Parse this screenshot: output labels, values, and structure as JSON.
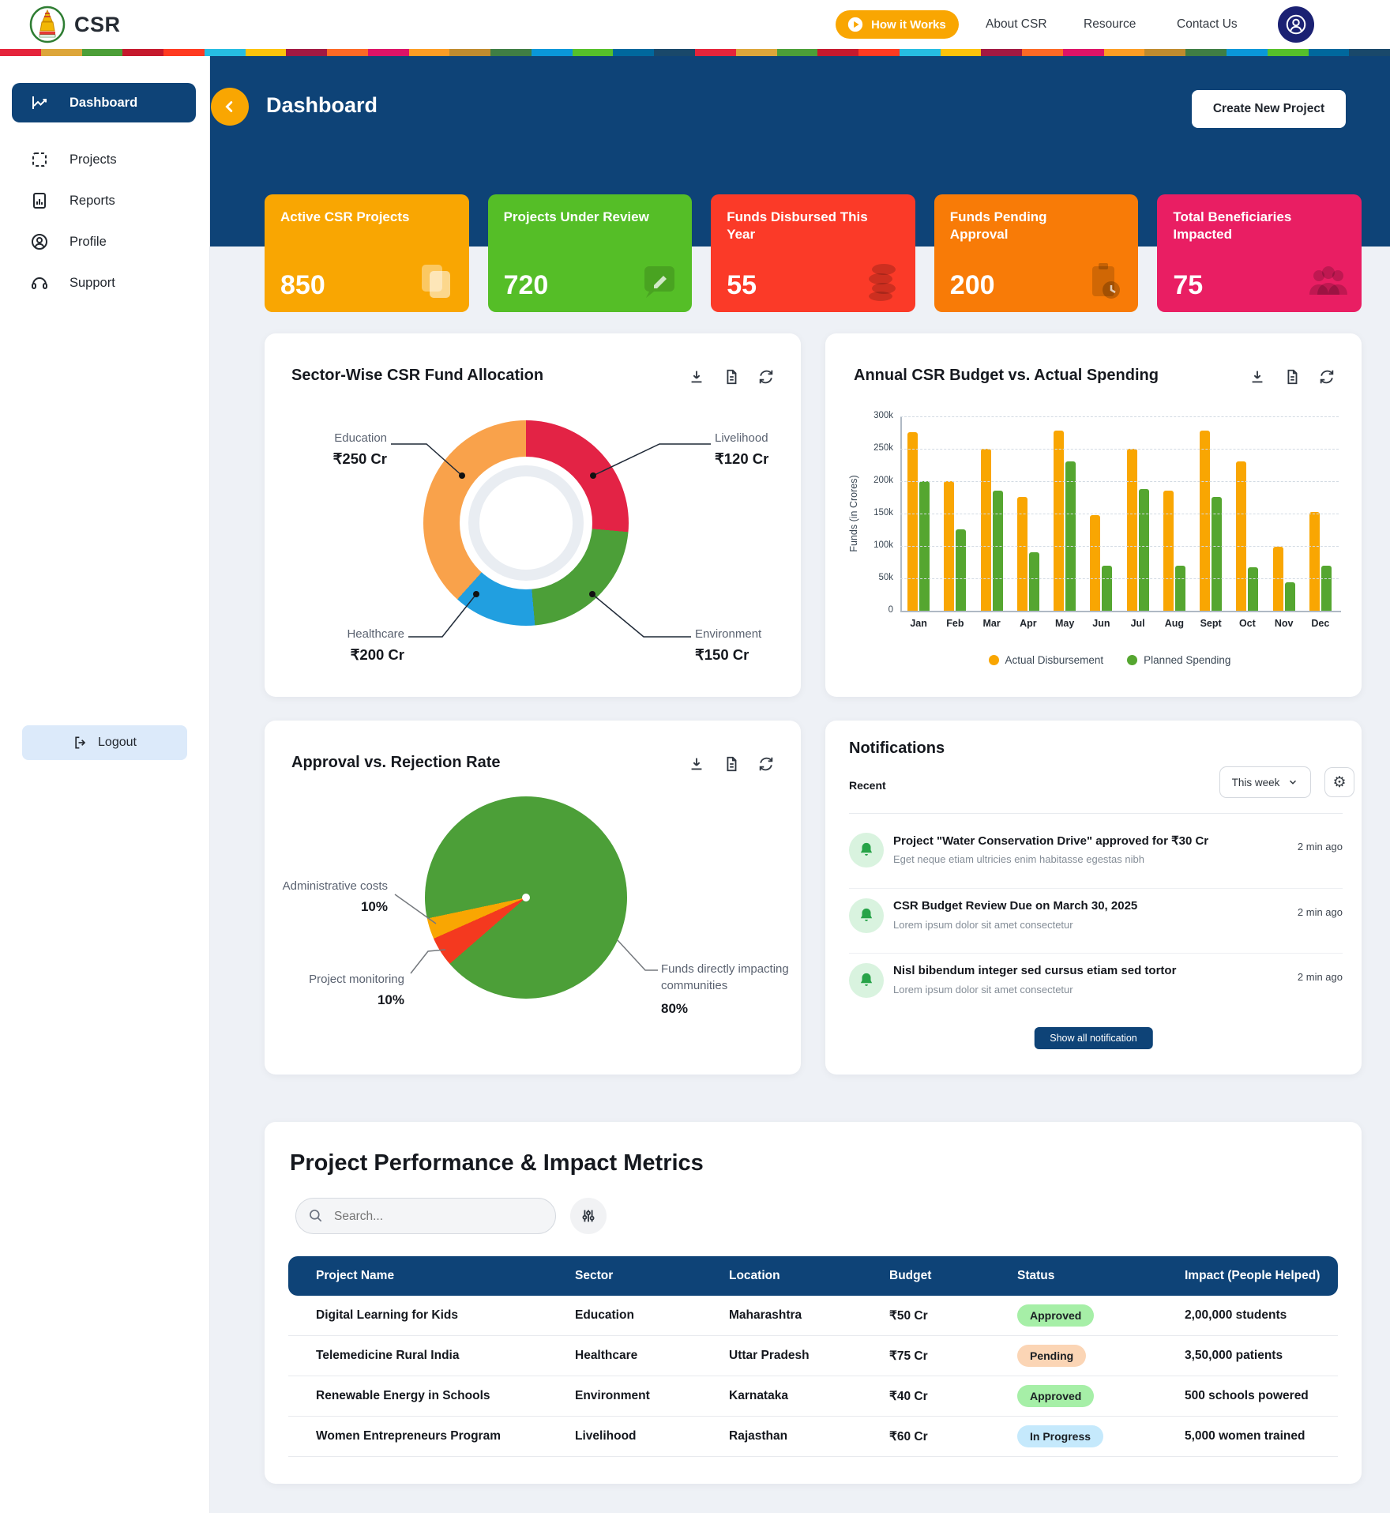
{
  "brand": {
    "name": "CSR"
  },
  "header": {
    "how_it_works": "How it Works",
    "links": [
      "About CSR",
      "Resource",
      "Contact Us"
    ]
  },
  "sdg_strip_colors": [
    "#E5243B",
    "#DDA63A",
    "#4C9F38",
    "#C5192D",
    "#FF3A21",
    "#26BDE2",
    "#FCC30B",
    "#A21942",
    "#FD6925",
    "#DD1367",
    "#FD9D24",
    "#BF8B2E",
    "#3F7E44",
    "#0A97D9",
    "#56C02B",
    "#00689D",
    "#19486A"
  ],
  "sidebar": {
    "items": [
      {
        "label": "Dashboard",
        "active": true
      },
      {
        "label": "Projects"
      },
      {
        "label": "Reports"
      },
      {
        "label": "Profile"
      },
      {
        "label": "Support"
      }
    ],
    "logout": "Logout"
  },
  "page": {
    "title": "Dashboard",
    "create_button": "Create New Project"
  },
  "stat_cards": [
    {
      "title": "Active CSR Projects",
      "value": "850",
      "color": "#F9A602",
      "icon": "documents-icon"
    },
    {
      "title": "Projects Under Review",
      "value": "720",
      "color": "#55BE27",
      "icon": "review-chat-icon"
    },
    {
      "title": "Funds Disbursed This Year",
      "value": "55",
      "color": "#FB3A28",
      "icon": "coins-icon"
    },
    {
      "title": "Funds Pending Approval",
      "value": "200",
      "color": "#F87B07",
      "icon": "clipboard-clock-icon"
    },
    {
      "title": "Total Beneficiaries Impacted",
      "value": "75",
      "color": "#E91E63",
      "icon": "people-icon"
    }
  ],
  "chart_data": [
    {
      "type": "pie",
      "variant": "donut",
      "title": "Sector-Wise CSR Fund Allocation",
      "unit": "₹ Cr",
      "segments": [
        {
          "label": "Education",
          "value": 250,
          "value_label": "₹250 Cr",
          "color": "#F9A24B"
        },
        {
          "label": "Livelihood",
          "value": 120,
          "value_label": "₹120 Cr",
          "color": "#E32345"
        },
        {
          "label": "Healthcare",
          "value": 200,
          "value_label": "₹200 Cr",
          "color": "#219FE0"
        },
        {
          "label": "Environment",
          "value": 150,
          "value_label": "₹150 Cr",
          "color": "#4C9F38"
        }
      ],
      "visual_arcs": [
        {
          "color": "#E32345",
          "start": 0,
          "end": 95
        },
        {
          "color": "#4C9F38",
          "start": 95,
          "end": 175
        },
        {
          "color": "#219FE0",
          "start": 175,
          "end": 222
        },
        {
          "color": "#F9A24B",
          "start": 222,
          "end": 360
        }
      ]
    },
    {
      "type": "bar",
      "title": "Annual CSR Budget vs. Actual Spending",
      "ylabel": "Funds (in Crores)",
      "ymax": 300,
      "ytick_labels": [
        "0",
        "50k",
        "100k",
        "150k",
        "200k",
        "250k",
        "300k"
      ],
      "categories": [
        "Jan",
        "Feb",
        "Mar",
        "Apr",
        "May",
        "Jun",
        "Jul",
        "Aug",
        "Sept",
        "Oct",
        "Nov",
        "Dec"
      ],
      "series": [
        {
          "name": "Actual Disbursement",
          "color": "#F9A602",
          "values": [
            275,
            200,
            250,
            175,
            278,
            148,
            250,
            185,
            278,
            230,
            99,
            153
          ]
        },
        {
          "name": "Planned Spending",
          "color": "#55A630",
          "values": [
            200,
            125,
            185,
            90,
            230,
            70,
            188,
            70,
            175,
            67,
            44,
            70
          ]
        }
      ],
      "grid": true,
      "legend_position": "bottom"
    },
    {
      "type": "pie",
      "title": "Approval vs. Rejection Rate",
      "segments": [
        {
          "label": "Funds directly impacting communities",
          "pct": 80,
          "pct_label": "80%",
          "color": "#4C9F38"
        },
        {
          "label": "Administrative costs",
          "pct": 10,
          "pct_label": "10%",
          "color": "#F9A602"
        },
        {
          "label": "Project monitoring",
          "pct": 10,
          "pct_label": "10%",
          "color": "#F4391F"
        }
      ],
      "visual_arcs": [
        {
          "color": "#4C9F38",
          "start": 0,
          "end": 229
        },
        {
          "color": "#F4391F",
          "start": 229,
          "end": 246
        },
        {
          "color": "#F9A602",
          "start": 246,
          "end": 258
        },
        {
          "color": "#4C9F38",
          "start": 258,
          "end": 360
        }
      ]
    }
  ],
  "notifications": {
    "title": "Notifications",
    "recent_label": "Recent",
    "range_value": "This week",
    "items": [
      {
        "title": "Project \"Water Conservation Drive\" approved for ₹30 Cr",
        "subtitle": "Eget neque etiam ultricies enim habitasse egestas nibh",
        "time": "2 min ago"
      },
      {
        "title": "CSR Budget Review Due on March 30, 2025",
        "subtitle": "Lorem ipsum dolor sit amet consectetur",
        "time": "2 min ago"
      },
      {
        "title": "Nisl bibendum integer sed cursus etiam sed tortor",
        "subtitle": "Lorem ipsum dolor sit amet consectetur",
        "time": "2 min ago"
      }
    ],
    "show_all": "Show all notification"
  },
  "metrics": {
    "heading": "Project Performance & Impact Metrics",
    "search_placeholder": "Search...",
    "columns": [
      "Project Name",
      "Sector",
      "Location",
      "Budget",
      "Status",
      "Impact (People Helped)"
    ],
    "rows": [
      {
        "name": "Digital Learning for Kids",
        "sector": "Education",
        "location": "Maharashtra",
        "budget": "₹50 Cr",
        "status": "Approved",
        "status_type": "approved",
        "impact": "2,00,000 students"
      },
      {
        "name": "Telemedicine Rural India",
        "sector": "Healthcare",
        "location": "Uttar Pradesh",
        "budget": "₹75 Cr",
        "status": "Pending",
        "status_type": "pending",
        "impact": "3,50,000 patients"
      },
      {
        "name": "Renewable Energy in Schools",
        "sector": "Environment",
        "location": "Karnataka",
        "budget": "₹40 Cr",
        "status": "Approved",
        "status_type": "approved",
        "impact": "500 schools powered"
      },
      {
        "name": "Women Entrepreneurs Program",
        "sector": "Livelihood",
        "location": "Rajasthan",
        "budget": "₹60 Cr",
        "status": "In Progress",
        "status_type": "progress",
        "impact": "5,000 women trained"
      }
    ]
  },
  "status_colors": {
    "approved": "#A6EFA7",
    "pending": "#FBD5B5",
    "progress": "#C5E9FC"
  }
}
